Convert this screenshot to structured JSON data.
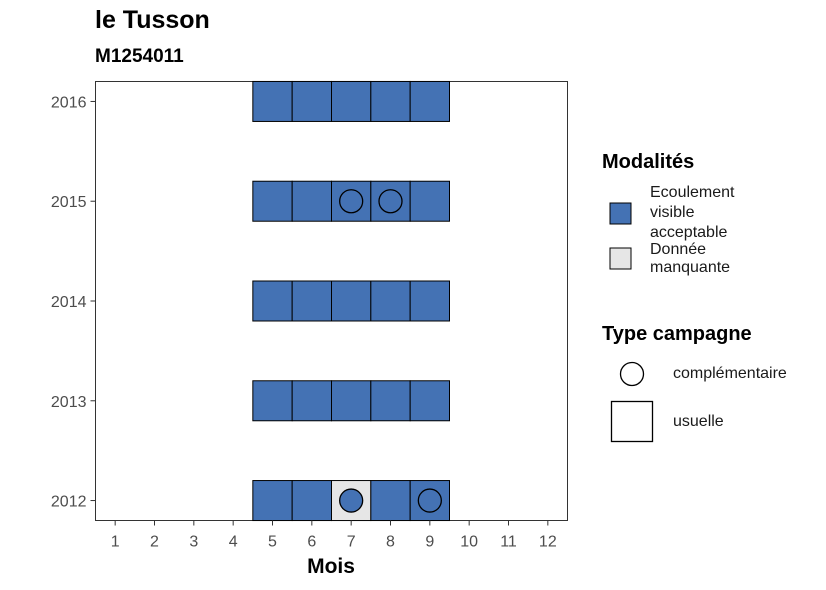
{
  "title": "le Tusson",
  "subtitle": "M1254011",
  "colors": {
    "ecoulement_visible_acceptable": "#4472B4",
    "donnee_manquante": "#E6E6E6",
    "outline": "#000000"
  },
  "legend": {
    "modalites_title": "Modalités",
    "modalites": [
      {
        "label": "Ecoulement visible acceptable",
        "color": "#4472B4"
      },
      {
        "label": "Donnée manquante",
        "color": "#E6E6E6"
      }
    ],
    "type_title": "Type campagne",
    "types": [
      {
        "label": "complémentaire",
        "shape": "circle"
      },
      {
        "label": "usuelle",
        "shape": "square"
      }
    ]
  },
  "chart_data": {
    "type": "heatmap",
    "title": "le Tusson",
    "subtitle": "M1254011",
    "xlabel": "Mois",
    "ylabel": "",
    "x_ticks": [
      1,
      2,
      3,
      4,
      5,
      6,
      7,
      8,
      9,
      10,
      11,
      12
    ],
    "y_ticks": [
      2012,
      2013,
      2014,
      2015,
      2016
    ],
    "xlim": [
      0.5,
      12.5
    ],
    "ylim": [
      2011.8,
      2016.2
    ],
    "grid": false,
    "legend_position": "right",
    "cells": [
      {
        "year": 2016,
        "month": 5,
        "modalite": "Ecoulement visible acceptable",
        "campagne": "usuelle"
      },
      {
        "year": 2016,
        "month": 6,
        "modalite": "Ecoulement visible acceptable",
        "campagne": "usuelle"
      },
      {
        "year": 2016,
        "month": 7,
        "modalite": "Ecoulement visible acceptable",
        "campagne": "usuelle"
      },
      {
        "year": 2016,
        "month": 8,
        "modalite": "Ecoulement visible acceptable",
        "campagne": "usuelle"
      },
      {
        "year": 2016,
        "month": 9,
        "modalite": "Ecoulement visible acceptable",
        "campagne": "usuelle"
      },
      {
        "year": 2015,
        "month": 5,
        "modalite": "Ecoulement visible acceptable",
        "campagne": "usuelle"
      },
      {
        "year": 2015,
        "month": 6,
        "modalite": "Ecoulement visible acceptable",
        "campagne": "usuelle"
      },
      {
        "year": 2015,
        "month": 7,
        "modalite": "Ecoulement visible acceptable",
        "campagne": "usuelle"
      },
      {
        "year": 2015,
        "month": 7,
        "modalite": "Ecoulement visible acceptable",
        "campagne": "complémentaire"
      },
      {
        "year": 2015,
        "month": 8,
        "modalite": "Ecoulement visible acceptable",
        "campagne": "usuelle"
      },
      {
        "year": 2015,
        "month": 8,
        "modalite": "Ecoulement visible acceptable",
        "campagne": "complémentaire"
      },
      {
        "year": 2015,
        "month": 9,
        "modalite": "Ecoulement visible acceptable",
        "campagne": "usuelle"
      },
      {
        "year": 2014,
        "month": 5,
        "modalite": "Ecoulement visible acceptable",
        "campagne": "usuelle"
      },
      {
        "year": 2014,
        "month": 6,
        "modalite": "Ecoulement visible acceptable",
        "campagne": "usuelle"
      },
      {
        "year": 2014,
        "month": 7,
        "modalite": "Ecoulement visible acceptable",
        "campagne": "usuelle"
      },
      {
        "year": 2014,
        "month": 8,
        "modalite": "Ecoulement visible acceptable",
        "campagne": "usuelle"
      },
      {
        "year": 2014,
        "month": 9,
        "modalite": "Ecoulement visible acceptable",
        "campagne": "usuelle"
      },
      {
        "year": 2013,
        "month": 5,
        "modalite": "Ecoulement visible acceptable",
        "campagne": "usuelle"
      },
      {
        "year": 2013,
        "month": 6,
        "modalite": "Ecoulement visible acceptable",
        "campagne": "usuelle"
      },
      {
        "year": 2013,
        "month": 7,
        "modalite": "Ecoulement visible acceptable",
        "campagne": "usuelle"
      },
      {
        "year": 2013,
        "month": 8,
        "modalite": "Ecoulement visible acceptable",
        "campagne": "usuelle"
      },
      {
        "year": 2013,
        "month": 9,
        "modalite": "Ecoulement visible acceptable",
        "campagne": "usuelle"
      },
      {
        "year": 2012,
        "month": 5,
        "modalite": "Ecoulement visible acceptable",
        "campagne": "usuelle"
      },
      {
        "year": 2012,
        "month": 6,
        "modalite": "Ecoulement visible acceptable",
        "campagne": "usuelle"
      },
      {
        "year": 2012,
        "month": 7,
        "modalite": "Donnée manquante",
        "campagne": "usuelle"
      },
      {
        "year": 2012,
        "month": 7,
        "modalite": "Ecoulement visible acceptable",
        "campagne": "complémentaire"
      },
      {
        "year": 2012,
        "month": 8,
        "modalite": "Ecoulement visible acceptable",
        "campagne": "usuelle"
      },
      {
        "year": 2012,
        "month": 9,
        "modalite": "Ecoulement visible acceptable",
        "campagne": "usuelle"
      },
      {
        "year": 2012,
        "month": 9,
        "modalite": "Ecoulement visible acceptable",
        "campagne": "complémentaire"
      }
    ]
  }
}
